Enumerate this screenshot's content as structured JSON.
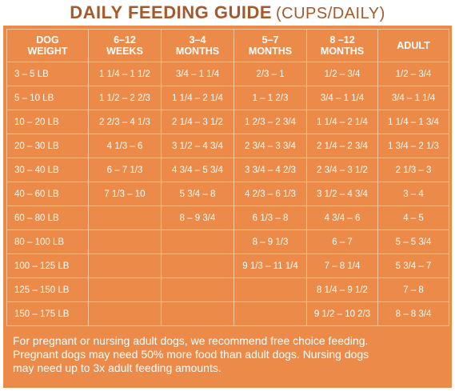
{
  "title": {
    "main": "DAILY FEEDING GUIDE",
    "sub": "(CUPS/DAILY)"
  },
  "table": {
    "headers": [
      [
        "DOG",
        "WEIGHT"
      ],
      [
        "6–12",
        "WEEKS"
      ],
      [
        "3–4",
        "MONTHS"
      ],
      [
        "5–7",
        "MONTHS"
      ],
      [
        "8 –12",
        "MONTHS"
      ],
      [
        "ADULT"
      ]
    ],
    "rows": [
      [
        "3 – 5 LB",
        "1 1/4 – 1 1/2",
        "3/4 – 1 1/4",
        "2/3 – 1",
        "1/2 – 3/4",
        "1/2 – 3/4"
      ],
      [
        "5 – 10 LB",
        "1 1/2 – 2 2/3",
        "1 1/4 – 2 1/4",
        "1 – 1 2/3",
        "3/4 – 1 1/4",
        "3/4 – 1 1/4"
      ],
      [
        "10 – 20 LB",
        "2 2/3 – 4 1/3",
        "2 1/4 – 3 1/2",
        "1 2/3 – 2 3/4",
        "1 1/4 – 2 1/4",
        "1 1/4 – 1 3/4"
      ],
      [
        "20 – 30 LB",
        "4 1/3 – 6",
        "3 1/2 – 4 3/4",
        "2 3/4 – 3 3/4",
        "2 1/4 – 2 3/4",
        "1 3/4 – 2 1/3"
      ],
      [
        "30 – 40 LB",
        "6 – 7 1/3",
        "4 3/4 – 5 3/4",
        "3 3/4 – 4 2/3",
        "2 3/4 – 3 1/2",
        "2 1/3 – 3"
      ],
      [
        "40 – 60 LB",
        "7 1/3 – 10",
        "5 3/4 – 8",
        "4 2/3 – 6 1/3",
        "3 1/2 – 4 3/4",
        "3 – 4"
      ],
      [
        "60 – 80 LB",
        "",
        "8 – 9 3/4",
        "6 1/3 – 8",
        "4 3/4 – 6",
        "4 – 5"
      ],
      [
        "80 – 100 LB",
        "",
        "",
        "8 – 9 1/3",
        "6 – 7",
        "5 – 5 3/4"
      ],
      [
        "100 – 125 LB",
        "",
        "",
        "9 1/3 – 11 1/4",
        "7 – 8 1/4",
        "5 3/4 – 7"
      ],
      [
        "125 – 150 LB",
        "",
        "",
        "",
        "8 1/4 – 9 1/2",
        "7 – 8"
      ],
      [
        "150 – 175 LB",
        "",
        "",
        "",
        "9 1/2 – 10 2/3",
        "8 – 8 3/4"
      ]
    ]
  },
  "note": {
    "lines": [
      "For pregnant or nursing adult dogs, we recommend free choice feeding.",
      "Pregnant dogs may need 50% more food than adult dogs. Nursing dogs",
      "may need up to 3x adult feeding amounts."
    ]
  },
  "colors": {
    "title": "#a6592a",
    "panel": "#ec8a49",
    "grid_line": "#f7c49f",
    "text": "#ffffff"
  }
}
